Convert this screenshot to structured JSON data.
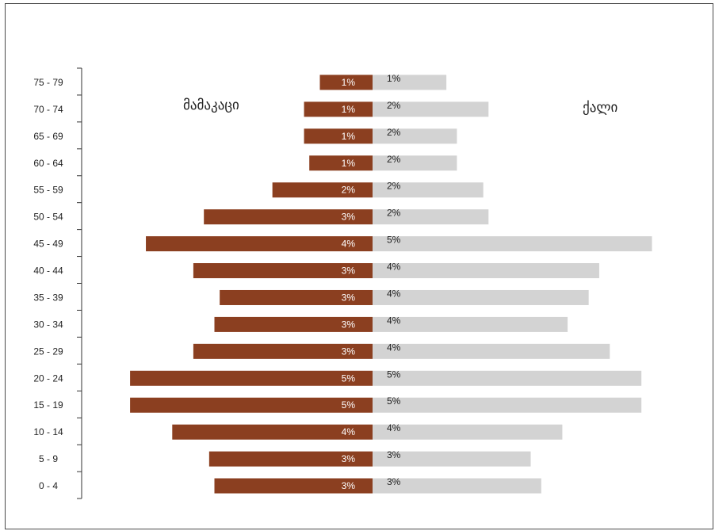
{
  "chart_data": {
    "type": "bar",
    "orientation": "horizontal",
    "categories": [
      "0 - 4",
      "5 - 9",
      "10 - 14",
      "15 - 19",
      "20 - 24",
      "25 - 29",
      "30 - 34",
      "35 - 39",
      "40 - 44",
      "45 - 49",
      "50 - 54",
      "55 - 59",
      "60 - 64",
      "65 - 69",
      "70 - 74",
      "75 - 79"
    ],
    "series": [
      {
        "name": "მამაკაცი",
        "color": "#8B3F20",
        "values": [
          3.0,
          3.1,
          3.8,
          4.6,
          4.6,
          3.4,
          3.0,
          2.9,
          3.4,
          4.3,
          3.2,
          1.9,
          1.2,
          1.3,
          1.3,
          1.0
        ],
        "labels": [
          "3%",
          "3%",
          "4%",
          "5%",
          "5%",
          "3%",
          "3%",
          "3%",
          "3%",
          "4%",
          "3%",
          "2%",
          "1%",
          "1%",
          "1%",
          "1%"
        ]
      },
      {
        "name": "ქალი",
        "color": "#D3D3D3",
        "values": [
          3.2,
          3.0,
          3.6,
          5.1,
          5.1,
          4.5,
          3.7,
          4.1,
          4.3,
          5.3,
          2.2,
          2.1,
          1.6,
          1.6,
          2.2,
          1.4
        ],
        "labels": [
          "3%",
          "3%",
          "4%",
          "5%",
          "5%",
          "4%",
          "4%",
          "4%",
          "4%",
          "5%",
          "2%",
          "2%",
          "2%",
          "2%",
          "2%",
          "1%"
        ]
      }
    ],
    "xlim": [
      -5.5,
      5.5
    ],
    "grid": false,
    "legend": "labels at top-left and top-right"
  }
}
